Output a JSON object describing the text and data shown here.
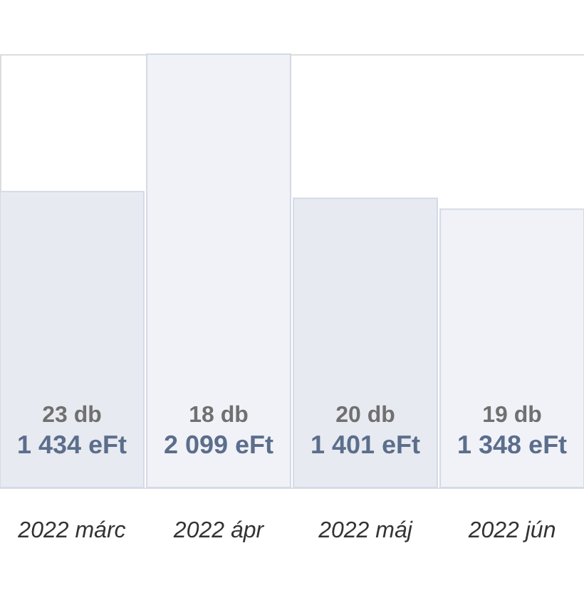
{
  "chart_data": {
    "type": "bar",
    "categories": [
      "2022 márc",
      "2022 ápr",
      "2022 máj",
      "2022 jún"
    ],
    "values": [
      1434,
      2099,
      1401,
      1348
    ],
    "colors": [
      "#e8eaf1",
      "#f1f2f7",
      "#e8eaf1",
      "#f1f2f7"
    ],
    "value_labels": [
      "1 434 eFt",
      "2 099 eFt",
      "1 401 eFt",
      "1 348 eFt"
    ],
    "annotations": [
      "23 db",
      "18 db",
      "20 db",
      "19 db"
    ]
  }
}
